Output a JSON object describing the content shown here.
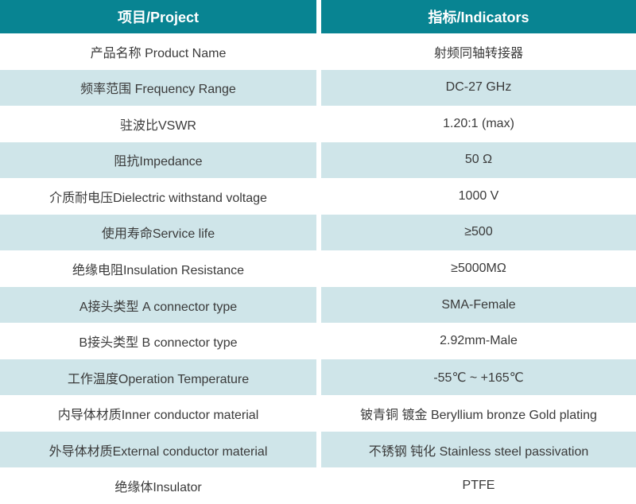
{
  "table": {
    "accent_color": "#088492",
    "row_alt_color": "#cfe5e9",
    "text_color": "#3a3a3a",
    "header": {
      "project": "项目/Project",
      "indicators": "指标/Indicators"
    },
    "rows": [
      {
        "label": "产品名称 Product Name",
        "value": "射频同轴转接器"
      },
      {
        "label": "频率范围 Frequency Range",
        "value": "DC-27 GHz"
      },
      {
        "label": "驻波比VSWR",
        "value": "1.20:1 (max)"
      },
      {
        "label": "阻抗Impedance",
        "value": "50 Ω"
      },
      {
        "label": "介质耐电压Dielectric withstand voltage",
        "value": "1000 V"
      },
      {
        "label": "使用寿命Service life",
        "value": "≥500"
      },
      {
        "label": "绝缘电阻Insulation Resistance",
        "value": "≥5000MΩ"
      },
      {
        "label": "A接头类型 A connector type",
        "value": "SMA-Female"
      },
      {
        "label": "B接头类型 B connector type",
        "value": "2.92mm-Male"
      },
      {
        "label": "工作温度Operation Temperature",
        "value": "-55℃ ~ +165℃"
      },
      {
        "label": "内导体材质Inner conductor material",
        "value": "铍青铜 镀金 Beryllium bronze Gold plating"
      },
      {
        "label": "外导体材质External conductor material",
        "value": "不锈钢 钝化 Stainless steel passivation"
      },
      {
        "label": "绝缘体Insulator",
        "value": "PTFE"
      }
    ]
  }
}
